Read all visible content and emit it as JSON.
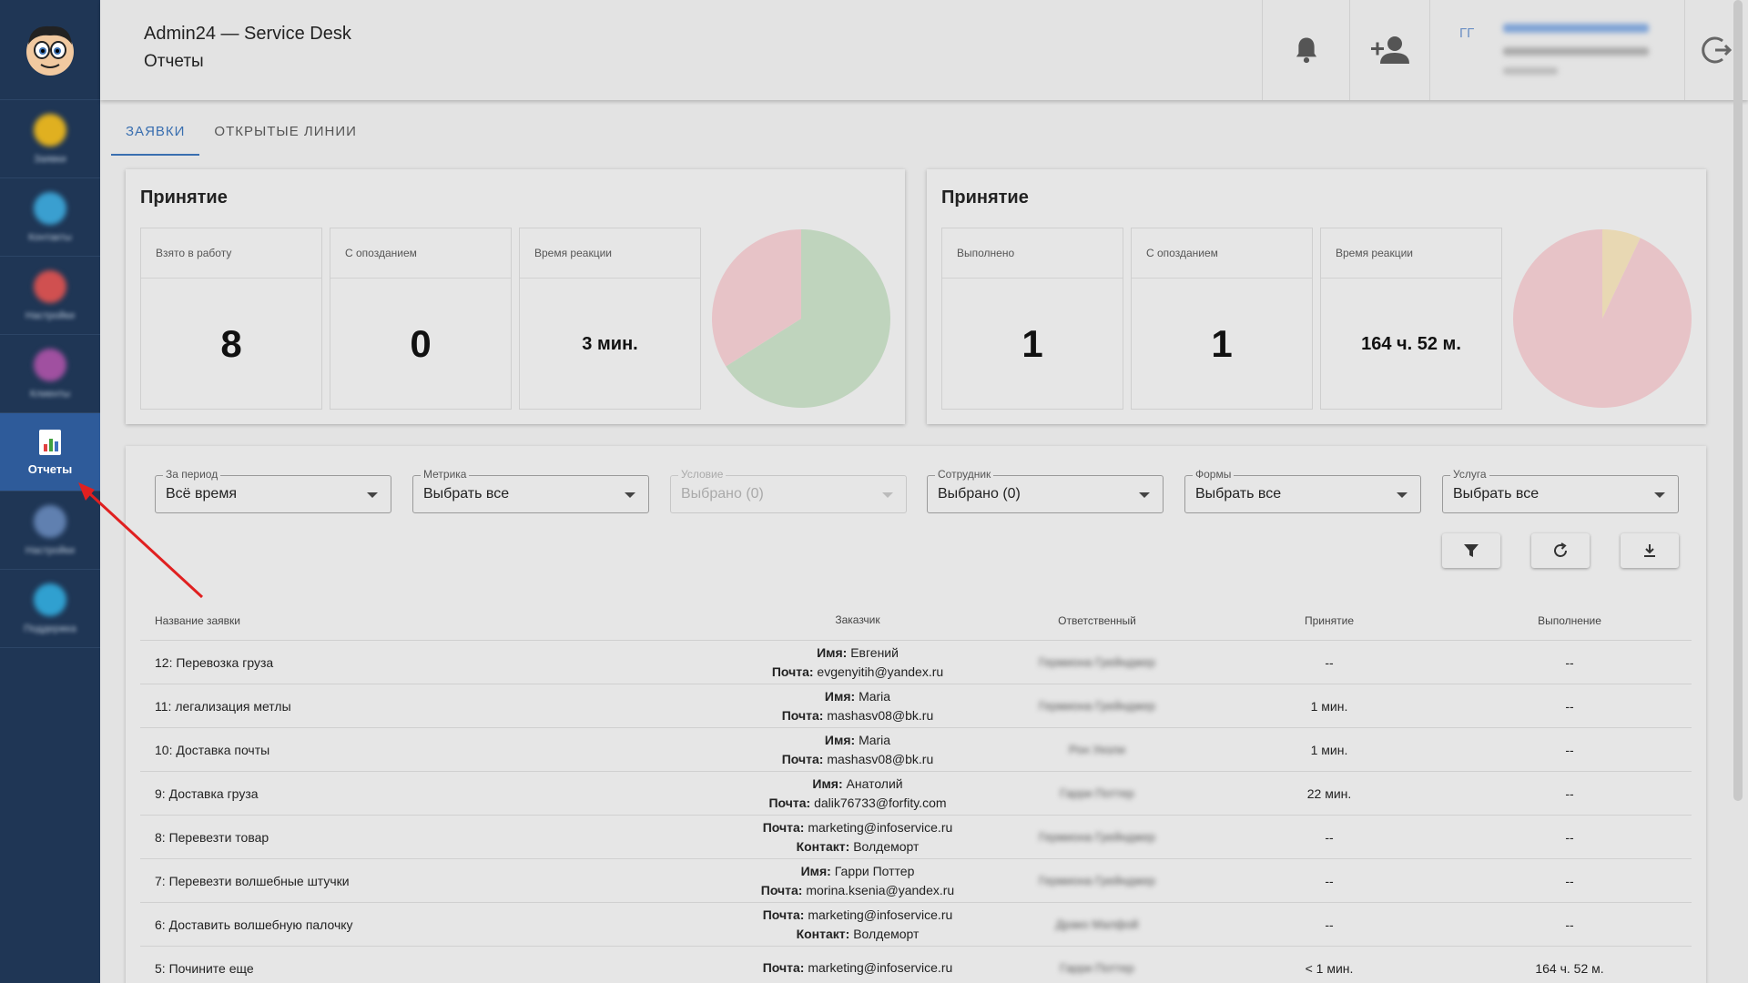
{
  "header": {
    "app_title": "Admin24 — Service Desk",
    "page_title": "Отчеты",
    "user_initials": "ГГ"
  },
  "sidebar": {
    "items": [
      {
        "label": "Заявки",
        "icon": "briefcase-icon",
        "color": "#e0b020"
      },
      {
        "label": "Контакты",
        "icon": "globe-icon",
        "color": "#3a9fd0"
      },
      {
        "label": "Настройки",
        "icon": "colorful-ball-icon",
        "color": "#d05050"
      },
      {
        "label": "Клиенты",
        "icon": "heart-icon",
        "color": "#a050a0"
      },
      {
        "label": "Отчеты",
        "icon": "report-icon",
        "color": "#ffffff",
        "active": true
      },
      {
        "label": "Настройки",
        "icon": "settings-ball-icon",
        "color": "#6080b0"
      },
      {
        "label": "Поддержка",
        "icon": "support-ball-icon",
        "color": "#30a0d0"
      }
    ]
  },
  "tabs": [
    {
      "label": "ЗАЯВКИ",
      "active": true
    },
    {
      "label": "ОТКРЫТЫЕ ЛИНИИ",
      "active": false
    }
  ],
  "panels": [
    {
      "title": "Принятие",
      "metrics": [
        {
          "label": "Взято в работу",
          "value": "8"
        },
        {
          "label": "С опозданием",
          "value": "0"
        },
        {
          "label": "Время реакции",
          "value": "3 мин."
        }
      ],
      "pie": {
        "slices": [
          {
            "share": 0.66,
            "color": "#bfd4bd"
          },
          {
            "share": 0.34,
            "color": "#e7c3c7"
          }
        ]
      }
    },
    {
      "title": "Принятие",
      "metrics": [
        {
          "label": "Выполнено",
          "value": "1"
        },
        {
          "label": "С опозданием",
          "value": "1"
        },
        {
          "label": "Время реакции",
          "value": "164 ч. 52 м."
        }
      ],
      "pie": {
        "slices": [
          {
            "share": 0.93,
            "color": "#e7c3c7"
          },
          {
            "share": 0.07,
            "color": "#e8d8b3"
          }
        ]
      }
    }
  ],
  "filters": [
    {
      "label": "За период",
      "value": "Всё время",
      "disabled": false
    },
    {
      "label": "Метрика",
      "value": "Выбрать все",
      "disabled": false
    },
    {
      "label": "Условие",
      "value": "Выбрано (0)",
      "disabled": true
    },
    {
      "label": "Сотрудник",
      "value": "Выбрано (0)",
      "disabled": false
    },
    {
      "label": "Формы",
      "value": "Выбрать все",
      "disabled": false
    },
    {
      "label": "Услуга",
      "value": "Выбрать все",
      "disabled": false
    }
  ],
  "actions": [
    {
      "name": "filter-button",
      "icon": "filter-icon"
    },
    {
      "name": "refresh-button",
      "icon": "refresh-icon"
    },
    {
      "name": "download-button",
      "icon": "download-icon"
    }
  ],
  "table": {
    "columns": [
      "Название заявки",
      "Заказчик",
      "Ответственный",
      "Принятие",
      "Выполнение"
    ],
    "rows": [
      {
        "title": "12: Перевозка груза",
        "k1": "Имя:",
        "v1": "Евгений",
        "k2": "Почта:",
        "v2": "evgenyitih@yandex.ru",
        "owner": "Гермиона Грейнджер",
        "accept": "--",
        "done": "--"
      },
      {
        "title": "11: легализация метлы",
        "k1": "Имя:",
        "v1": "Maria",
        "k2": "Почта:",
        "v2": "mashasv08@bk.ru",
        "owner": "Гермиона Грейнджер",
        "accept": "1 мин.",
        "done": "--"
      },
      {
        "title": "10: Доставка почты",
        "k1": "Имя:",
        "v1": "Maria",
        "k2": "Почта:",
        "v2": "mashasv08@bk.ru",
        "owner": "Рон Уизли",
        "accept": "1 мин.",
        "done": "--"
      },
      {
        "title": "9: Доставка груза",
        "k1": "Имя:",
        "v1": "Анатолий",
        "k2": "Почта:",
        "v2": "dalik76733@forfity.com",
        "owner": "Гарри Поттер",
        "accept": "22 мин.",
        "done": "--"
      },
      {
        "title": "8: Перевезти товар",
        "k1": "Почта:",
        "v1": "marketing@infoservice.ru",
        "k2": "Контакт:",
        "v2": "Волдеморт",
        "owner": "Гермиона Грейнджер",
        "accept": "--",
        "done": "--"
      },
      {
        "title": "7: Перевезти волшебные штучки",
        "k1": "Имя:",
        "v1": "Гарри Поттер",
        "k2": "Почта:",
        "v2": "morina.ksenia@yandex.ru",
        "owner": "Гермиона Грейнджер",
        "accept": "--",
        "done": "--"
      },
      {
        "title": "6: Доставить волшебную палочку",
        "k1": "Почта:",
        "v1": "marketing@infoservice.ru",
        "k2": "Контакт:",
        "v2": "Волдеморт",
        "owner": "Драко Малфой",
        "accept": "--",
        "done": "--"
      },
      {
        "title": "5: Почините еще",
        "k1": "Почта:",
        "v1": "marketing@infoservice.ru",
        "k2": "",
        "v2": "",
        "owner": "Гарри Поттер",
        "accept": "< 1 мин.",
        "done": "164 ч. 52 м."
      }
    ]
  }
}
